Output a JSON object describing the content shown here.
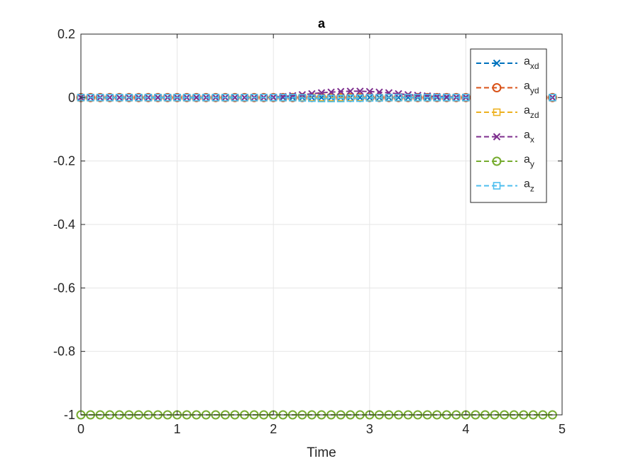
{
  "chart_data": {
    "type": "line",
    "title": "a",
    "xlabel": "Time",
    "ylabel": "",
    "xlim": [
      0,
      5
    ],
    "ylim": [
      -1,
      0.2
    ],
    "grid": true,
    "legend_position": "top-right",
    "xticks": [
      "0",
      "1",
      "2",
      "3",
      "4",
      "5"
    ],
    "yticks": [
      "0.2",
      "0",
      "-0.2",
      "-0.4",
      "-0.6",
      "-0.8",
      "-1"
    ],
    "x": [
      0,
      0.1,
      0.2,
      0.3,
      0.4,
      0.5,
      0.6,
      0.7,
      0.8,
      0.9,
      1.0,
      1.1,
      1.2,
      1.3,
      1.4,
      1.5,
      1.6,
      1.7,
      1.8,
      1.9,
      2.0,
      2.1,
      2.2,
      2.3,
      2.4,
      2.5,
      2.6,
      2.7,
      2.8,
      2.9,
      3.0,
      3.1,
      3.2,
      3.3,
      3.4,
      3.5,
      3.6,
      3.7,
      3.8,
      3.9,
      4.0,
      4.1,
      4.2,
      4.3,
      4.4,
      4.5,
      4.6,
      4.7,
      4.8,
      4.9
    ],
    "series": [
      {
        "name": "a_xd",
        "base": "a",
        "sub": "xd",
        "color": "#0072BD",
        "marker": "x",
        "values": [
          0,
          0,
          0,
          0,
          0,
          0,
          0,
          0,
          0,
          0,
          0,
          0,
          0,
          0,
          0,
          0,
          0,
          0,
          0,
          0,
          0,
          0,
          0,
          0,
          0,
          0,
          0,
          0,
          0,
          0,
          0,
          0,
          0,
          0,
          0,
          0,
          0,
          0,
          0,
          0,
          0,
          0,
          0,
          0,
          0,
          0,
          0,
          0,
          0,
          0
        ]
      },
      {
        "name": "a_yd",
        "base": "a",
        "sub": "yd",
        "color": "#D95319",
        "marker": "o",
        "values": [
          0,
          0,
          0,
          0,
          0,
          0,
          0,
          0,
          0,
          0,
          0,
          0,
          0,
          0,
          0,
          0,
          0,
          0,
          0,
          0,
          0,
          0,
          0,
          0,
          0,
          0,
          0,
          0,
          0,
          0,
          0,
          0,
          0,
          0,
          0,
          0,
          0,
          0,
          0,
          0,
          0,
          0,
          0,
          0,
          0,
          0,
          0,
          0,
          0,
          0
        ]
      },
      {
        "name": "a_zd",
        "base": "a",
        "sub": "zd",
        "color": "#EDB120",
        "marker": "s",
        "values": [
          0,
          0,
          0,
          0,
          0,
          0,
          0,
          0,
          0,
          0,
          0,
          0,
          0,
          0,
          0,
          0,
          0,
          0,
          0,
          0,
          0,
          0,
          0,
          0,
          0,
          0,
          0,
          0,
          0,
          0,
          0,
          0,
          0,
          0,
          0,
          0,
          0,
          0,
          0,
          0,
          0,
          0,
          0,
          0,
          0,
          0,
          0,
          0,
          0,
          0
        ]
      },
      {
        "name": "a_x",
        "base": "a",
        "sub": "x",
        "color": "#7E2F8E",
        "marker": "x",
        "values": [
          0,
          0,
          0,
          0,
          0,
          0,
          0,
          0,
          0,
          0,
          0,
          0,
          0,
          0,
          0,
          0,
          0,
          0,
          0,
          0,
          0.001,
          0.003,
          0.006,
          0.009,
          0.012,
          0.015,
          0.017,
          0.019,
          0.02,
          0.02,
          0.019,
          0.017,
          0.015,
          0.012,
          0.009,
          0.007,
          0.005,
          0.003,
          0.002,
          0.001,
          0.001,
          0,
          0,
          0,
          0,
          0,
          0,
          0,
          0,
          0
        ]
      },
      {
        "name": "a_y",
        "base": "a",
        "sub": "y",
        "color": "#77AC30",
        "marker": "o",
        "values": [
          -1,
          -1,
          -1,
          -1,
          -1,
          -1,
          -1,
          -1,
          -1,
          -1,
          -1,
          -1,
          -1,
          -1,
          -1,
          -1,
          -1,
          -1,
          -1,
          -1,
          -1,
          -1,
          -1,
          -1,
          -1,
          -1,
          -1,
          -1,
          -1,
          -1,
          -1,
          -1,
          -1,
          -1,
          -1,
          -1,
          -1,
          -1,
          -1,
          -1,
          -1,
          -1,
          -1,
          -1,
          -1,
          -1,
          -1,
          -1,
          -1,
          -1
        ]
      },
      {
        "name": "a_z",
        "base": "a",
        "sub": "z",
        "color": "#4DBEEE",
        "marker": "s",
        "values": [
          0,
          0,
          0,
          0,
          0,
          0,
          0,
          0,
          0,
          0,
          0,
          0,
          0,
          0,
          0,
          0,
          0,
          0,
          0,
          0,
          0,
          0,
          0,
          -0.001,
          -0.002,
          -0.003,
          -0.003,
          -0.003,
          -0.002,
          -0.002,
          -0.001,
          -0.001,
          0,
          0,
          0,
          0,
          0,
          0,
          0,
          0,
          0,
          0,
          0,
          0,
          0,
          0,
          0,
          0,
          0,
          0
        ]
      }
    ]
  }
}
